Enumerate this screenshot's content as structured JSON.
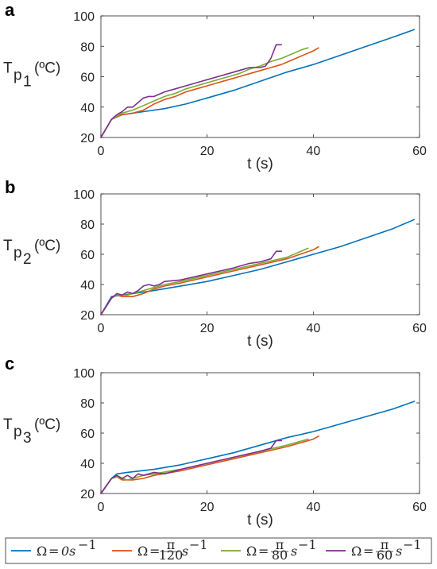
{
  "chart_data": [
    {
      "type": "line",
      "panel": "a",
      "xlabel": "t (s)",
      "ylabel": {
        "main": "T",
        "sub1": "p",
        "sub2": "1",
        "unit": "(ºC)"
      },
      "xlim": [
        0,
        60
      ],
      "ylim": [
        20,
        100
      ],
      "xticks": [
        0,
        20,
        40,
        60
      ],
      "yticks": [
        20,
        40,
        60,
        80,
        100
      ],
      "series": [
        {
          "x": [
            0,
            2,
            4,
            8,
            12,
            16,
            20,
            25,
            30,
            35,
            40,
            45,
            50,
            55,
            59
          ],
          "y": [
            20,
            32,
            35,
            37,
            39,
            42,
            46,
            51,
            57,
            63,
            68,
            74,
            80,
            86,
            91
          ]
        },
        {
          "x": [
            0,
            2,
            4,
            6,
            8,
            10,
            12,
            14,
            16,
            18,
            20,
            22,
            24,
            26,
            28,
            30,
            32,
            34,
            36,
            38,
            40,
            41
          ],
          "y": [
            20,
            32,
            35,
            36,
            38,
            42,
            45,
            47,
            50,
            52,
            54,
            56,
            58,
            60,
            62,
            64,
            66,
            68,
            71,
            74,
            77,
            79
          ]
        },
        {
          "x": [
            0,
            2,
            4,
            6,
            8,
            10,
            12,
            14,
            16,
            18,
            20,
            22,
            24,
            26,
            28,
            30,
            32,
            34,
            36,
            38,
            39
          ],
          "y": [
            20,
            32,
            36,
            38,
            41,
            44,
            47,
            49,
            52,
            54,
            56,
            58,
            60,
            62,
            65,
            67,
            70,
            72,
            75,
            78,
            79
          ]
        },
        {
          "x": [
            0,
            2,
            3,
            4,
            5,
            6,
            7,
            8,
            9,
            10,
            12,
            14,
            16,
            18,
            20,
            22,
            24,
            26,
            28,
            30,
            31,
            32,
            33,
            34
          ],
          "y": [
            20,
            32,
            35,
            37,
            40,
            40,
            43,
            46,
            47,
            47,
            50,
            52,
            54,
            56,
            58,
            60,
            62,
            64,
            66,
            66,
            67,
            72,
            81,
            81
          ]
        }
      ]
    },
    {
      "type": "line",
      "panel": "b",
      "xlabel": "t (s)",
      "ylabel": {
        "main": "T",
        "sub1": "p",
        "sub2": "2",
        "unit": "(ºC)"
      },
      "xlim": [
        0,
        60
      ],
      "ylim": [
        20,
        100
      ],
      "xticks": [
        0,
        20,
        40,
        60
      ],
      "yticks": [
        20,
        40,
        60,
        80,
        100
      ],
      "series": [
        {
          "x": [
            0,
            2,
            4,
            6,
            8,
            10,
            15,
            20,
            25,
            30,
            35,
            40,
            45,
            50,
            55,
            59
          ],
          "y": [
            20,
            32,
            33,
            34,
            35,
            36,
            39,
            42,
            46,
            50,
            55,
            60,
            65,
            71,
            77,
            83
          ]
        },
        {
          "x": [
            0,
            2,
            3,
            4,
            5,
            6,
            7,
            8,
            10,
            12,
            15,
            20,
            25,
            30,
            35,
            40,
            41
          ],
          "y": [
            20,
            31,
            33,
            32,
            32,
            32,
            33,
            34,
            37,
            39,
            41,
            45,
            49,
            53,
            57,
            63,
            65
          ]
        },
        {
          "x": [
            0,
            2,
            3,
            4,
            5,
            6,
            8,
            10,
            12,
            15,
            20,
            25,
            30,
            35,
            39
          ],
          "y": [
            20,
            31,
            33,
            33,
            33,
            34,
            36,
            38,
            40,
            42,
            46,
            50,
            54,
            58,
            64
          ]
        },
        {
          "x": [
            0,
            2,
            3,
            4,
            5,
            6,
            7,
            8,
            9,
            10,
            11,
            12,
            15,
            20,
            25,
            28,
            30,
            32,
            33,
            34
          ],
          "y": [
            20,
            31,
            34,
            33,
            35,
            34,
            36,
            39,
            40,
            39,
            40,
            42,
            43,
            47,
            51,
            54,
            55,
            57,
            62,
            62
          ]
        }
      ]
    },
    {
      "type": "line",
      "panel": "c",
      "xlabel": "t (s)",
      "ylabel": {
        "main": "T",
        "sub1": "p",
        "sub2": "3",
        "unit": "(ºC)"
      },
      "xlim": [
        0,
        60
      ],
      "ylim": [
        20,
        100
      ],
      "xticks": [
        0,
        20,
        40,
        60
      ],
      "yticks": [
        20,
        40,
        60,
        80,
        100
      ],
      "series": [
        {
          "x": [
            0,
            2,
            3,
            5,
            10,
            15,
            20,
            25,
            30,
            35,
            40,
            45,
            50,
            55,
            59
          ],
          "y": [
            20,
            30,
            33,
            34,
            36,
            39,
            43,
            47,
            52,
            57,
            61,
            66,
            71,
            76,
            81
          ]
        },
        {
          "x": [
            0,
            2,
            3,
            4,
            5,
            6,
            8,
            10,
            15,
            20,
            25,
            30,
            35,
            40,
            41
          ],
          "y": [
            20,
            30,
            31,
            29,
            29,
            29,
            30,
            32,
            35,
            39,
            43,
            47,
            51,
            56,
            58
          ]
        },
        {
          "x": [
            0,
            2,
            3,
            4,
            5,
            6,
            8,
            10,
            15,
            20,
            25,
            30,
            35,
            39
          ],
          "y": [
            20,
            30,
            31,
            30,
            29,
            30,
            32,
            33,
            36,
            40,
            44,
            48,
            52,
            56
          ]
        },
        {
          "x": [
            0,
            2,
            3,
            4,
            5,
            6,
            7,
            8,
            9,
            10,
            12,
            15,
            20,
            25,
            30,
            32,
            33,
            34
          ],
          "y": [
            20,
            30,
            32,
            30,
            32,
            30,
            33,
            32,
            33,
            34,
            33,
            36,
            40,
            44,
            48,
            50,
            55,
            55
          ]
        }
      ]
    }
  ],
  "legend": {
    "placement": "bottom",
    "entries": [
      {
        "lhs": "Ω",
        "eq": "=",
        "num": "",
        "den": "",
        "base": "0s",
        "exp": "−1",
        "color": "#0072BD"
      },
      {
        "lhs": "Ω",
        "eq": "=",
        "num": "π",
        "den": "120",
        "base": "s",
        "exp": "−1",
        "color": "#D95319"
      },
      {
        "lhs": "Ω",
        "eq": "=",
        "num": "π",
        "den": "80",
        "base": "s",
        "exp": "−1",
        "color": "#77AC30"
      },
      {
        "lhs": "Ω",
        "eq": "=",
        "num": "π",
        "den": "60",
        "base": "s",
        "exp": "−1",
        "color": "#7E2F8E"
      }
    ]
  }
}
